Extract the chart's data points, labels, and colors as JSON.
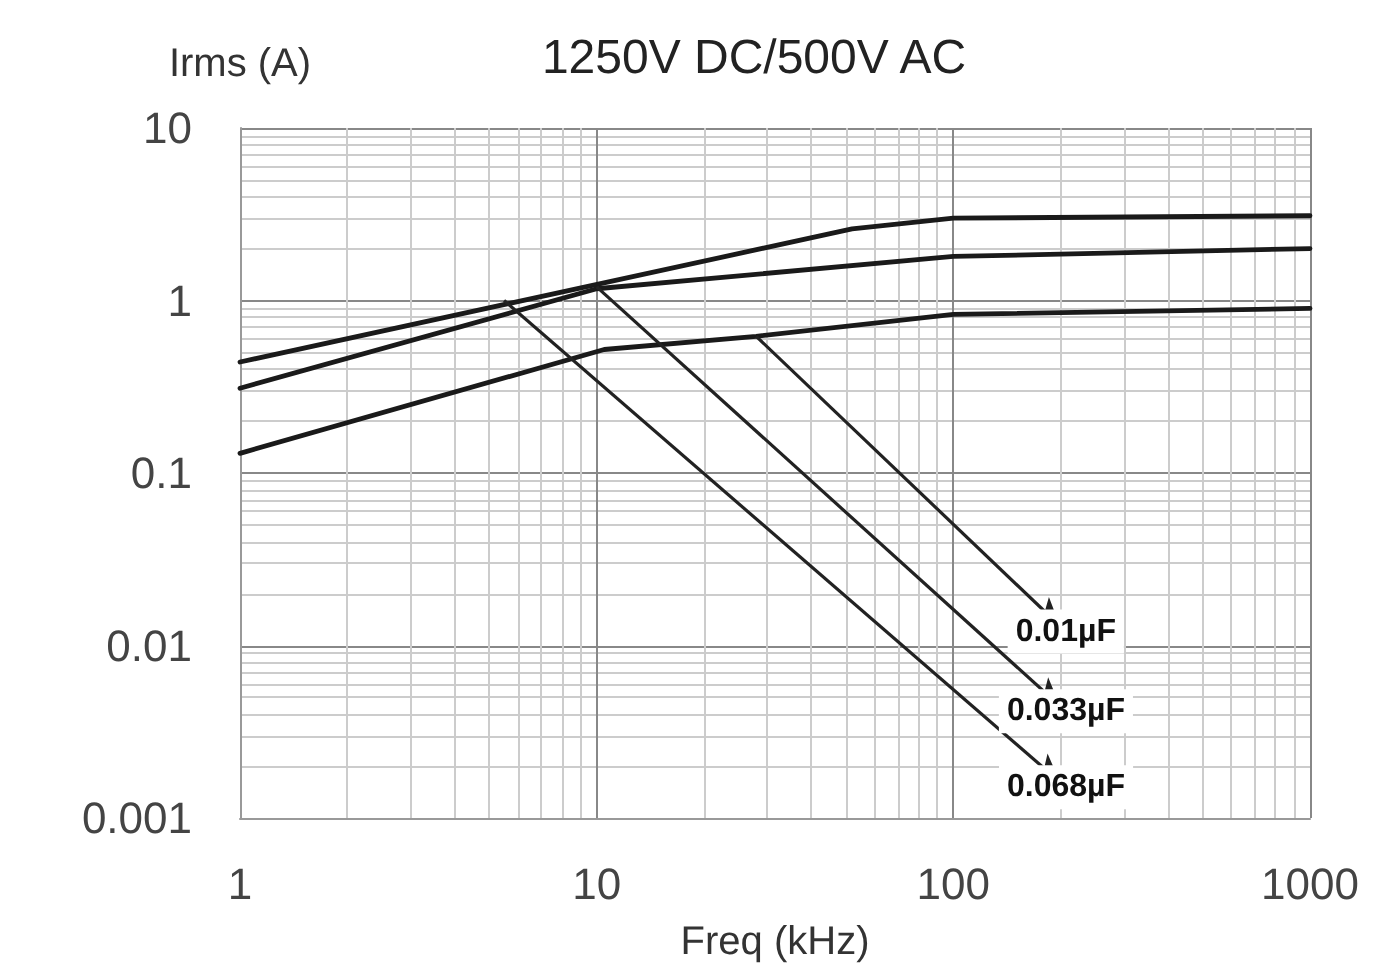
{
  "chart_data": {
    "type": "line",
    "title": "1250V DC/500V AC",
    "xlabel": "Freq (kHz)",
    "ylabel": "Irms (A)",
    "log": "xy",
    "grid": true,
    "marker": "none",
    "line_style": "solid",
    "xlim": [
      1,
      1000
    ],
    "xticks": [
      1,
      10,
      100,
      1000
    ],
    "ylim": [
      0.001,
      10
    ],
    "yticks": [
      0.001,
      0.01,
      0.1,
      1,
      10
    ],
    "series": [
      {
        "color": "#1a1a1a",
        "x": [
          1,
          52,
          100,
          1000
        ],
        "values": [
          0.44,
          2.6,
          3.0,
          3.1
        ]
      },
      {
        "color": "#1a1a1a",
        "x": [
          1,
          10,
          100,
          1000
        ],
        "values": [
          0.31,
          1.17,
          1.8,
          2.0
        ]
      },
      {
        "color": "#1a1a1a",
        "x": [
          1,
          10.5,
          28,
          100,
          1000
        ],
        "values": [
          0.13,
          0.52,
          0.62,
          0.83,
          0.9
        ]
      }
    ],
    "annotations": [
      {
        "text": "0.01µF",
        "x": 28,
        "y": 0.62
      },
      {
        "text": "0.033µF",
        "x": 10,
        "y": 1.2
      },
      {
        "text": "0.068µF",
        "x": 5.5,
        "y": 1.0
      }
    ]
  }
}
